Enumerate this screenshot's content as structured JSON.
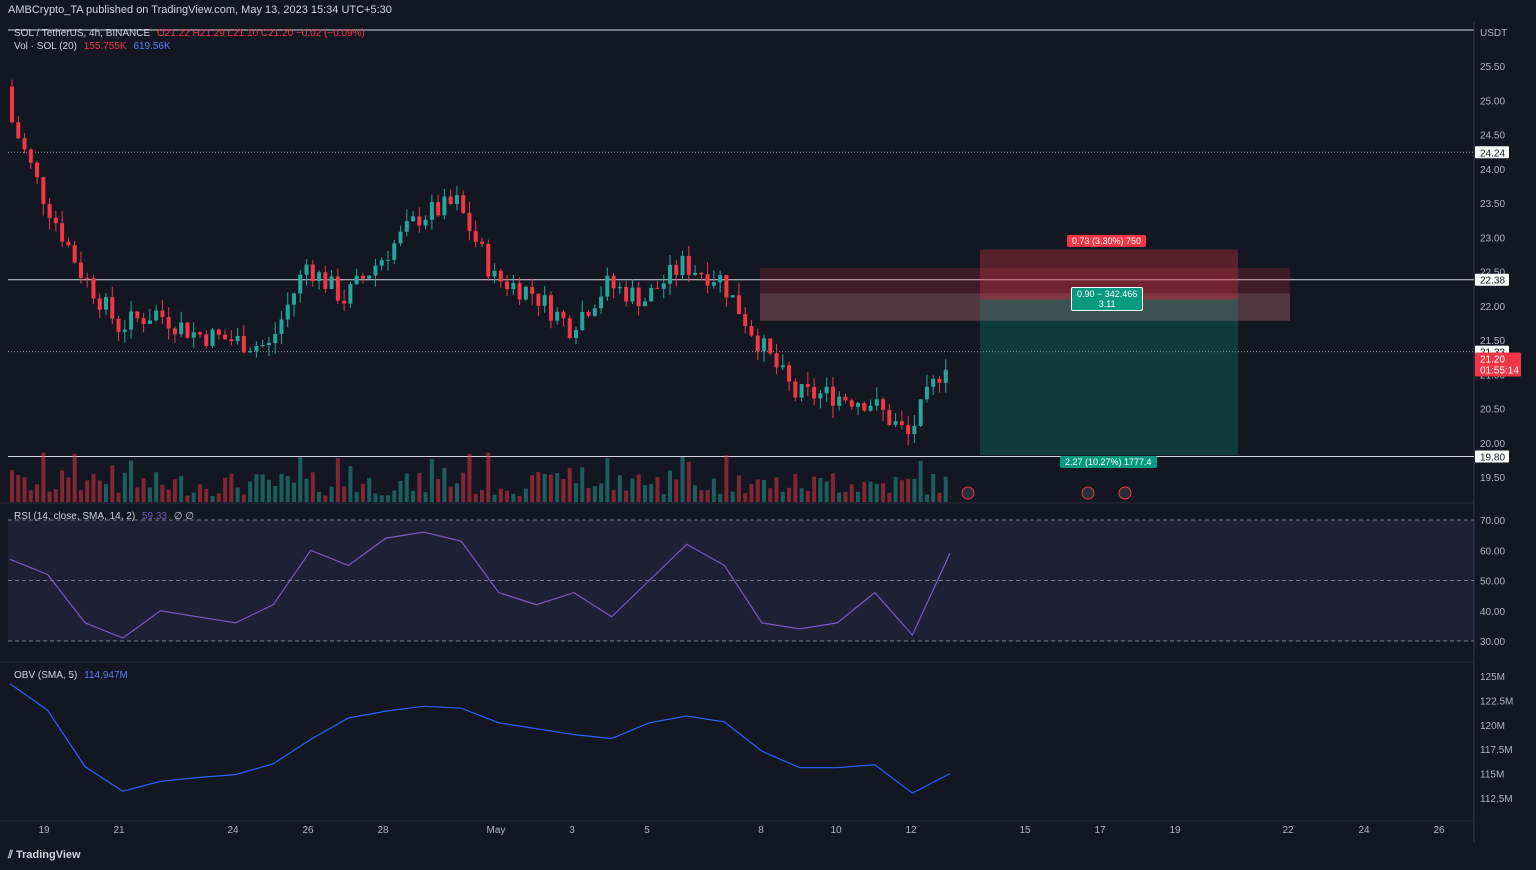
{
  "publisher": "AMBCrypto_TA published on TradingView.com, May 13, 2023 15:34 UTC+5:30",
  "header": {
    "symbol": "SOL / TetherUS, 4h, BINANCE",
    "ohlc": "O21.22 H21.29 L21.10 C21.20 −0.02 (−0.09%)",
    "vol_label": "Vol · SOL (20)",
    "vol_value_1": "155.755K",
    "vol_value_2": "619.56K"
  },
  "currency": "USDT",
  "price_axis": [
    "25.50",
    "25.00",
    "24.50",
    "24.00",
    "23.50",
    "23.00",
    "22.50",
    "22.00",
    "21.50",
    "21.00",
    "20.50",
    "20.00",
    "19.50"
  ],
  "level_labels": {
    "l1": "24.24",
    "l2": "22.38",
    "l3": "21.33",
    "l4": "19.80"
  },
  "current_price": {
    "price": "21.20",
    "countdown": "01:55:14"
  },
  "position": {
    "stop_label": "0.73 (3.30%) 750",
    "ratio_label": "0.90 − 342.466",
    "ratio_value": "3.11",
    "target_label": "2.27 (10.27%) 1777.4",
    "entry": 22.09,
    "stop": 22.82,
    "target": 19.82
  },
  "rsi": {
    "label": "RSI (14, close, SMA, 14, 2)",
    "value": "59.33",
    "extra": "∅ ∅",
    "axis": [
      "70.00",
      "60.00",
      "50.00",
      "40.00",
      "30.00"
    ]
  },
  "obv": {
    "label": "OBV (SMA, 5)",
    "value": "114.947M",
    "axis": [
      "125M",
      "122.5M",
      "120M",
      "117.5M",
      "115M",
      "112.5M"
    ]
  },
  "time_axis": [
    "19",
    "21",
    "24",
    "26",
    "28",
    "May",
    "3",
    "5",
    "8",
    "10",
    "12",
    "15",
    "17",
    "19",
    "22",
    "24",
    "26"
  ],
  "branding": "TradingView",
  "colors": {
    "up": "#26a69a",
    "down": "#f23645",
    "rsi": "#7e57c2",
    "obv": "#2962ff",
    "bg": "#131722"
  },
  "chart_data": {
    "type": "candlestick",
    "x": [
      "Apr 18",
      "Apr 19",
      "Apr 20",
      "Apr 21",
      "Apr 22",
      "Apr 23",
      "Apr 24",
      "Apr 25",
      "Apr 26",
      "Apr 27",
      "Apr 28",
      "Apr 29",
      "Apr 30",
      "May 1",
      "May 2",
      "May 3",
      "May 4",
      "May 5",
      "May 6",
      "May 7",
      "May 8",
      "May 9",
      "May 10",
      "May 11",
      "May 12",
      "May 13"
    ],
    "close": [
      24.9,
      23.6,
      22.5,
      21.7,
      21.9,
      21.6,
      21.5,
      21.4,
      22.6,
      22.1,
      22.7,
      23.3,
      23.5,
      22.4,
      22.2,
      21.7,
      22.3,
      22.1,
      22.6,
      22.4,
      21.5,
      20.7,
      20.7,
      20.6,
      20.1,
      21.2
    ],
    "ylabel": "USDT",
    "ylim": [
      19.3,
      25.9
    ],
    "horizontal_levels": [
      24.24,
      22.38,
      21.33,
      19.8
    ],
    "rsi_values": [
      57,
      52,
      36,
      31,
      40,
      38,
      36,
      42,
      60,
      55,
      64,
      66,
      63,
      46,
      42,
      46,
      38,
      50,
      62,
      55,
      36,
      34,
      36,
      46,
      32,
      59
    ],
    "rsi_ylim": [
      25,
      72
    ],
    "obv_values_M": [
      124.2,
      121.5,
      115.7,
      113.2,
      114.2,
      114.6,
      114.9,
      116.0,
      118.5,
      120.7,
      121.4,
      121.9,
      121.7,
      120.2,
      119.6,
      119.0,
      118.6,
      120.2,
      120.9,
      120.3,
      117.3,
      115.6,
      115.6,
      115.9,
      113.0,
      115.0
    ],
    "obv_ylim": [
      111,
      126
    ]
  }
}
